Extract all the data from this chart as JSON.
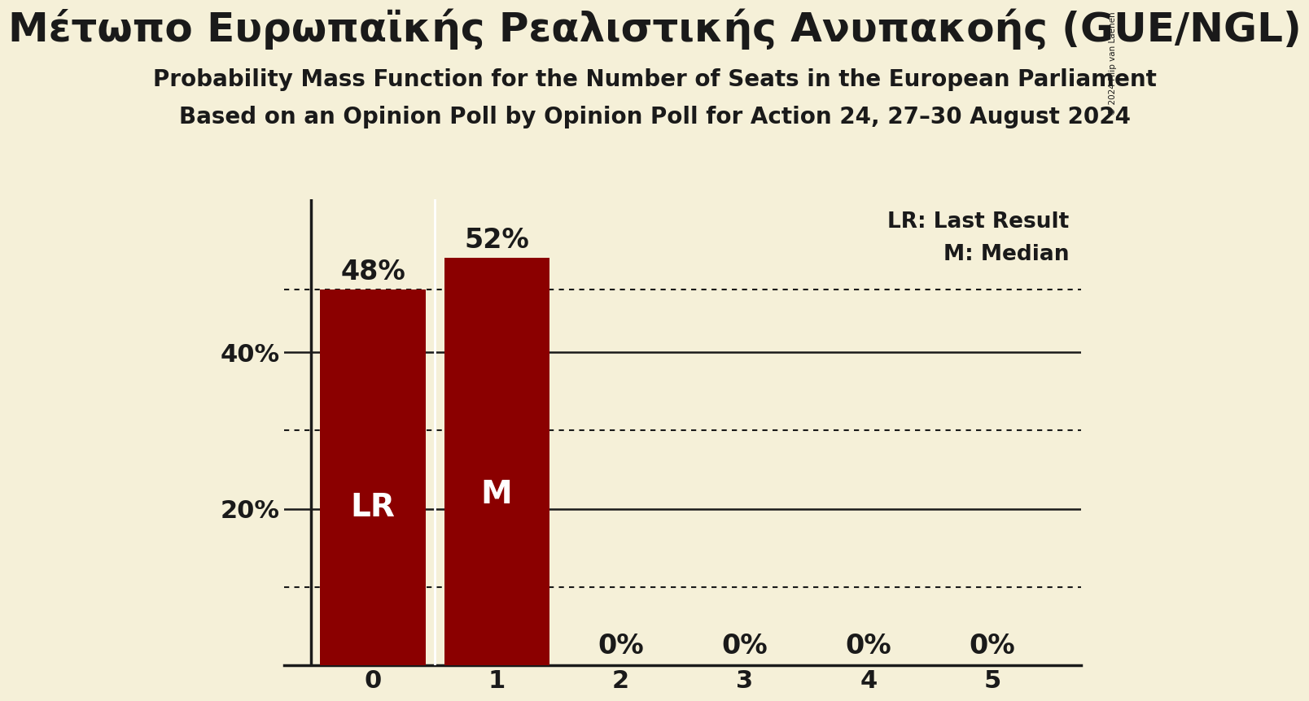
{
  "title_greek": "Μέτωπο Ευρωπαϊκής Ρεαλιστικής Ανυπακοής (GUE/NGL)",
  "subtitle1": "Probability Mass Function for the Number of Seats in the European Parliament",
  "subtitle2": "Based on an Opinion Poll by Opinion Poll for Action 24, 27–30 August 2024",
  "categories": [
    0,
    1,
    2,
    3,
    4,
    5
  ],
  "values": [
    0.48,
    0.52,
    0.0,
    0.0,
    0.0,
    0.0
  ],
  "bar_color": "#8B0000",
  "background_color": "#F5F0D8",
  "label_color": "#1a1a1a",
  "bar_labels": [
    "48%",
    "52%",
    "0%",
    "0%",
    "0%",
    "0%"
  ],
  "bar_inside_labels": [
    "LR",
    "M",
    "",
    "",
    "",
    ""
  ],
  "dotted_lines": [
    0.48,
    0.3,
    0.1
  ],
  "solid_lines": [
    0.2,
    0.4
  ],
  "legend_lr": "LR: Last Result",
  "legend_m": "M: Median",
  "ylim": [
    0,
    0.595
  ],
  "yticks": [
    0.2,
    0.4
  ],
  "ytick_labels": [
    "20%",
    "40%"
  ],
  "copyright_text": "© 2024 Filip van Laenen",
  "title_fontsize": 36,
  "subtitle_fontsize": 20,
  "bar_label_fontsize": 24,
  "inside_label_fontsize": 28,
  "axis_label_fontsize": 22,
  "legend_fontsize": 19
}
